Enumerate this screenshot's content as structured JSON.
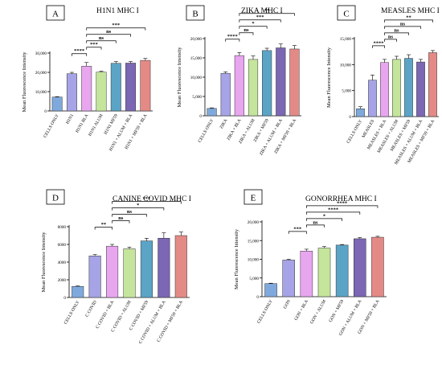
{
  "colors": {
    "cells_only": "#7fa9dc",
    "antigen": "#a6a3e6",
    "bla": "#e8a6ef",
    "alum": "#c4e59b",
    "mf59": "#5ba4c6",
    "alum_bla": "#7b67b3",
    "mf59_bla": "#e48a86"
  },
  "chart_data": [
    {
      "panel": "A",
      "type": "bar",
      "title": "H1N1 MHC I",
      "ylabel": "Mean Fluorescence Intensity",
      "ylim": [
        0,
        30000
      ],
      "yticks": [
        "0",
        "10,000",
        "20,000",
        "30,000"
      ],
      "categories": [
        "CELLS ONLY",
        "H1N1",
        "H1N1 BLA",
        "H1N1 ALUM",
        "H1N1 MF59",
        "H1N1 + ALUM + BLA",
        "H1N1 + MF59 + BLA"
      ],
      "values": [
        7200,
        19300,
        23200,
        20100,
        24700,
        24800,
        26200
      ],
      "errors": [
        200,
        700,
        1900,
        500,
        900,
        800,
        1000
      ],
      "brackets": [
        {
          "from": 1,
          "to": 2,
          "label": "****"
        },
        {
          "from": 2,
          "to": 3,
          "label": "***"
        },
        {
          "from": 2,
          "to": 4,
          "label": "ns"
        },
        {
          "from": 2,
          "to": 5,
          "label": "ns"
        },
        {
          "from": 2,
          "to": 6,
          "label": "***"
        }
      ]
    },
    {
      "panel": "B",
      "type": "bar",
      "title": "ZIKA MHC I",
      "ylabel": "Mean Fluorescence Intensity",
      "ylim": [
        0,
        20000
      ],
      "yticks": [
        "0",
        "5,000",
        "10,000",
        "15,000",
        "20,000"
      ],
      "categories": [
        "CELLS ONLY",
        "ZIKA",
        "ZIKA + BLA",
        "ZIKA + ALUM",
        "ZIKA + MF59",
        "ZIKA + ALUM + BLA",
        "ZIKA + MF59 + BLA"
      ],
      "values": [
        1900,
        11000,
        15600,
        14600,
        16900,
        17600,
        17300
      ],
      "errors": [
        150,
        400,
        800,
        900,
        600,
        1000,
        900
      ],
      "brackets": [
        {
          "from": 1,
          "to": 2,
          "label": "****"
        },
        {
          "from": 2,
          "to": 3,
          "label": "ns"
        },
        {
          "from": 2,
          "to": 4,
          "label": "*"
        },
        {
          "from": 2,
          "to": 5,
          "label": "***"
        },
        {
          "from": 2,
          "to": 6,
          "label": "**"
        }
      ]
    },
    {
      "panel": "C",
      "type": "bar",
      "title": "MEASLES MHC I",
      "ylabel": "Mean Fluorescence Intensity",
      "ylim": [
        0,
        15000
      ],
      "yticks": [
        "0",
        "5,000",
        "10,000",
        "15,000"
      ],
      "categories": [
        "CELLS ONLY",
        "MEASLES",
        "MEASLES + BLA",
        "MEASLES + ALUM",
        "MEASLES + MF59",
        "MEASLES + ALUM + BLA",
        "MEASLES + MF59 + BLA"
      ],
      "values": [
        1500,
        7000,
        10400,
        11000,
        11200,
        10500,
        12300
      ],
      "errors": [
        400,
        1000,
        600,
        600,
        700,
        500,
        400
      ],
      "brackets": [
        {
          "from": 1,
          "to": 2,
          "label": "****"
        },
        {
          "from": 2,
          "to": 3,
          "label": "ns"
        },
        {
          "from": 2,
          "to": 4,
          "label": "ns"
        },
        {
          "from": 2,
          "to": 5,
          "label": "ns"
        },
        {
          "from": 2,
          "to": 6,
          "label": "**"
        }
      ]
    },
    {
      "panel": "D",
      "type": "bar",
      "title": "CANINE COVID MHC I",
      "ylabel": "Mean Fluorescence Intensity",
      "ylim": [
        0,
        8000
      ],
      "yticks": [
        "0",
        "2000",
        "4000",
        "6000",
        "8000"
      ],
      "categories": [
        "CELLS ONLY",
        "C COVID",
        "C COVID + BLA",
        "C COVID + ALUM",
        "C COVID + MF59",
        "C COVID + ALUM + BLA",
        "C COVID + MF59 + BLA"
      ],
      "values": [
        1250,
        4700,
        5800,
        5500,
        6400,
        6700,
        7000
      ],
      "errors": [
        50,
        150,
        200,
        200,
        300,
        600,
        400
      ],
      "brackets": [
        {
          "from": 1,
          "to": 2,
          "label": "**"
        },
        {
          "from": 2,
          "to": 3,
          "label": "ns"
        },
        {
          "from": 2,
          "to": 4,
          "label": "ns"
        },
        {
          "from": 2,
          "to": 5,
          "label": "*"
        },
        {
          "from": 2,
          "to": 6,
          "label": "***"
        }
      ]
    },
    {
      "panel": "E",
      "type": "bar",
      "title": "GONORRHEA MHC I",
      "ylabel": "Mean Fluorescence Intensity",
      "ylim": [
        0,
        20000
      ],
      "yticks": [
        "0",
        "5,000",
        "10,000",
        "15,000",
        "20,000"
      ],
      "categories": [
        "CELLS ONLY",
        "GON",
        "GON + BLA",
        "GON + ALUM",
        "GON + MF59",
        "GON + ALUM + BLA",
        "GON + MF59 + BLA"
      ],
      "values": [
        3500,
        9800,
        12200,
        13000,
        13800,
        15500,
        15900
      ],
      "errors": [
        100,
        200,
        500,
        400,
        150,
        300,
        250
      ],
      "brackets": [
        {
          "from": 1,
          "to": 2,
          "label": "***"
        },
        {
          "from": 2,
          "to": 3,
          "label": "ns"
        },
        {
          "from": 2,
          "to": 4,
          "label": "*"
        },
        {
          "from": 2,
          "to": 5,
          "label": "****"
        },
        {
          "from": 2,
          "to": 6,
          "label": "****"
        }
      ]
    }
  ]
}
